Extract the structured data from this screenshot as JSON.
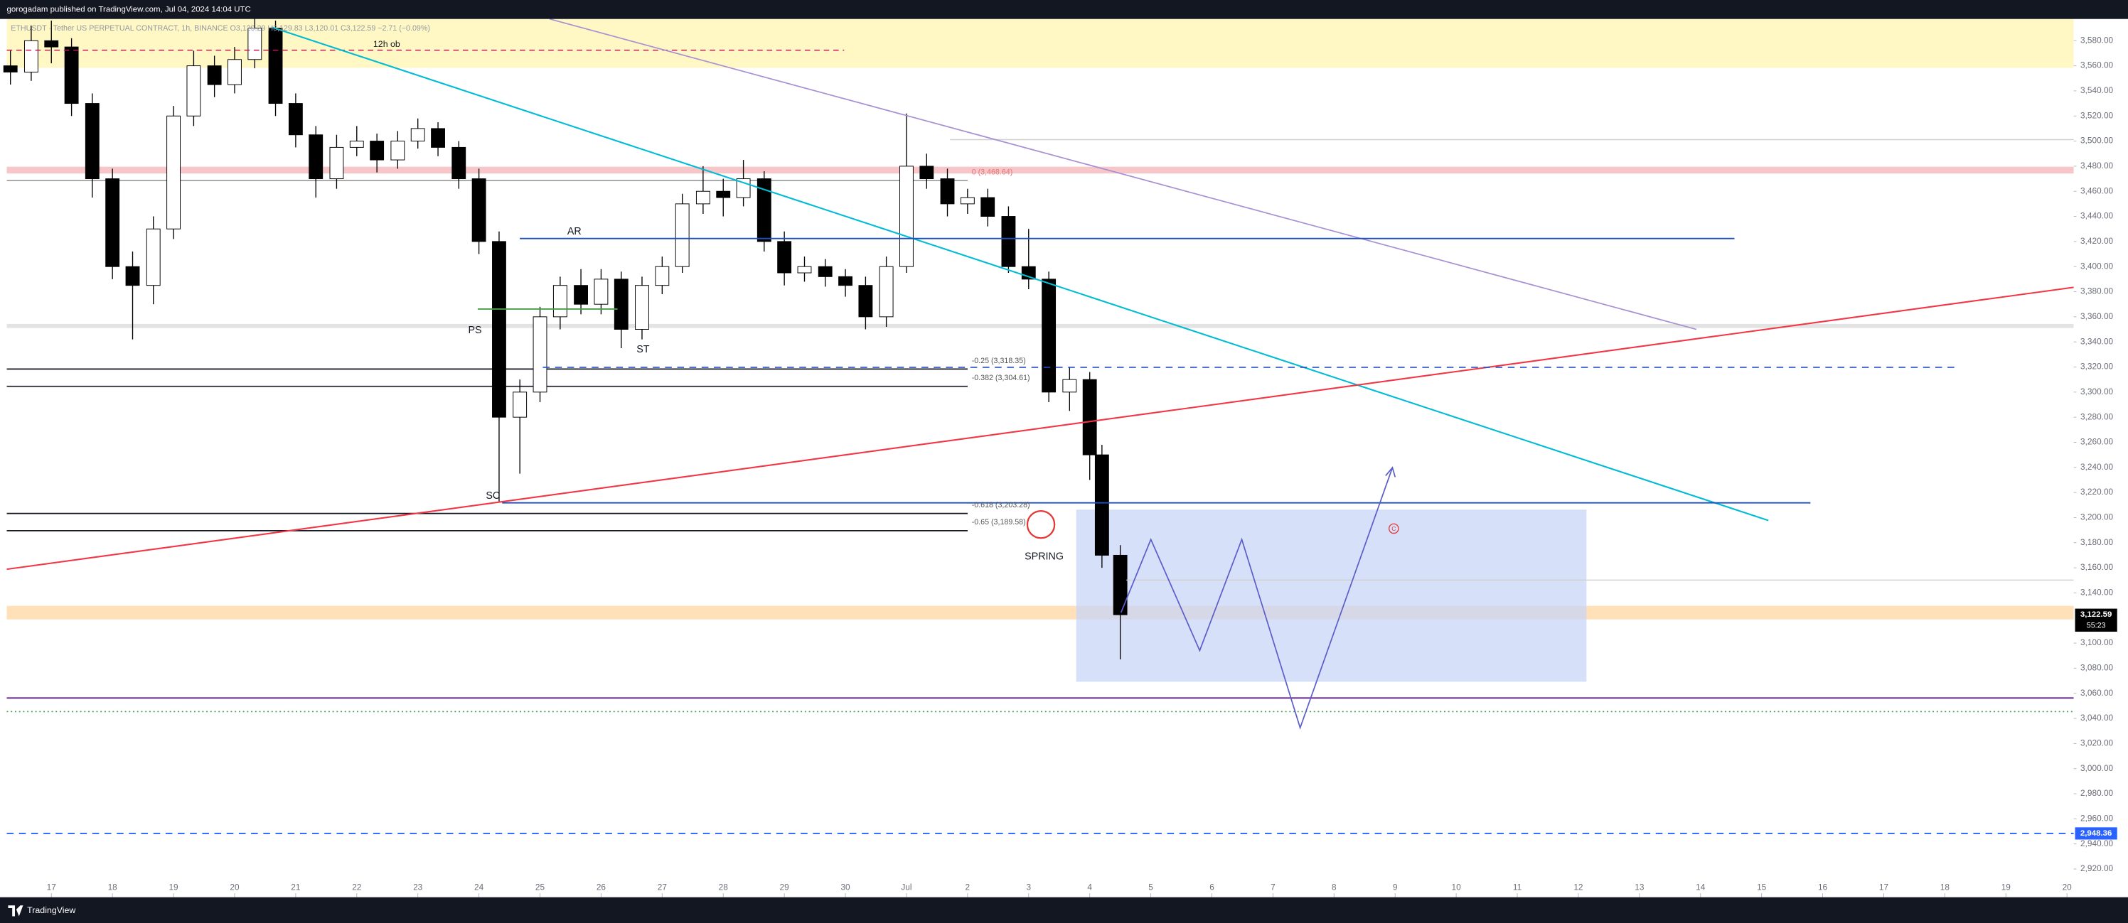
{
  "header": {
    "published": "gorogadam published on TradingView.com, Jul 04, 2024 14:04 UTC",
    "brand": "TradingView"
  },
  "chart_data": {
    "type": "candlestick",
    "legend_text": "ETHUSDT · Tether US PERPETUAL CONTRACT, 1h, BINANCE  O3,129.29 H3,129.83 L3,120.01 C3,122.59 −2.71 (−0.09%)",
    "up_color": "#ffffff",
    "down_color": "#000000",
    "wick_color": "#000000",
    "xlim": [
      -0.73,
      33.11
    ],
    "ylim": [
      2897.5,
      3597.3
    ],
    "xticks": [
      {
        "value": 0,
        "label": "17"
      },
      {
        "value": 1,
        "label": "18"
      },
      {
        "value": 2,
        "label": "19"
      },
      {
        "value": 3,
        "label": "20"
      },
      {
        "value": 4,
        "label": "21"
      },
      {
        "value": 5,
        "label": "22"
      },
      {
        "value": 6,
        "label": "23"
      },
      {
        "value": 7,
        "label": "24"
      },
      {
        "value": 8,
        "label": "25"
      },
      {
        "value": 9,
        "label": "26"
      },
      {
        "value": 10,
        "label": "27"
      },
      {
        "value": 11,
        "label": "28"
      },
      {
        "value": 12,
        "label": "29"
      },
      {
        "value": 13,
        "label": "30"
      },
      {
        "value": 14,
        "label": "Jul"
      },
      {
        "value": 15,
        "label": "2"
      },
      {
        "value": 16,
        "label": "3"
      },
      {
        "value": 17,
        "label": "4"
      },
      {
        "value": 18,
        "label": "5"
      },
      {
        "value": 19,
        "label": "6"
      },
      {
        "value": 20,
        "label": "7"
      },
      {
        "value": 21,
        "label": "8"
      },
      {
        "value": 22,
        "label": "9"
      },
      {
        "value": 23,
        "label": "10"
      },
      {
        "value": 24,
        "label": "11"
      },
      {
        "value": 25,
        "label": "12"
      },
      {
        "value": 26,
        "label": "13"
      },
      {
        "value": 27,
        "label": "14"
      },
      {
        "value": 28,
        "label": "15"
      },
      {
        "value": 29,
        "label": "16"
      },
      {
        "value": 30,
        "label": "17"
      },
      {
        "value": 31,
        "label": "18"
      },
      {
        "value": 32,
        "label": "19"
      },
      {
        "value": 33,
        "label": "20"
      }
    ],
    "yticks": [
      {
        "value": 2920,
        "label": "2,920.00"
      },
      {
        "value": 2940,
        "label": "2,940.00"
      },
      {
        "value": 2960,
        "label": "2,960.00"
      },
      {
        "value": 2980,
        "label": "2,980.00"
      },
      {
        "value": 3000,
        "label": "3,000.00"
      },
      {
        "value": 3020,
        "label": "3,020.00"
      },
      {
        "value": 3040,
        "label": "3,040.00"
      },
      {
        "value": 3060,
        "label": "3,060.00"
      },
      {
        "value": 3080,
        "label": "3,080.00"
      },
      {
        "value": 3100,
        "label": "3,100.00"
      },
      {
        "value": 3140,
        "label": "3,140.00"
      },
      {
        "value": 3160,
        "label": "3,160.00"
      },
      {
        "value": 3180,
        "label": "3,180.00"
      },
      {
        "value": 3200,
        "label": "3,200.00"
      },
      {
        "value": 3220,
        "label": "3,220.00"
      },
      {
        "value": 3240,
        "label": "3,240.00"
      },
      {
        "value": 3260,
        "label": "3,260.00"
      },
      {
        "value": 3280,
        "label": "3,280.00"
      },
      {
        "value": 3300,
        "label": "3,300.00"
      },
      {
        "value": 3320,
        "label": "3,320.00"
      },
      {
        "value": 3340,
        "label": "3,340.00"
      },
      {
        "value": 3360,
        "label": "3,360.00"
      },
      {
        "value": 3380,
        "label": "3,380.00"
      },
      {
        "value": 3400,
        "label": "3,400.00"
      },
      {
        "value": 3420,
        "label": "3,420.00"
      },
      {
        "value": 3440,
        "label": "3,440.00"
      },
      {
        "value": 3460,
        "label": "3,460.00"
      },
      {
        "value": 3480,
        "label": "3,480.00"
      },
      {
        "value": 3500,
        "label": "3,500.00"
      },
      {
        "value": 3520,
        "label": "3,520.00"
      },
      {
        "value": 3540,
        "label": "3,540.00"
      },
      {
        "value": 3560,
        "label": "3,560.00"
      },
      {
        "value": 3580,
        "label": "3,580.00"
      }
    ],
    "x": [
      -0.67,
      -0.33,
      0,
      0.33,
      0.67,
      1,
      1.33,
      1.67,
      2,
      2.33,
      2.67,
      3,
      3.33,
      3.67,
      4,
      4.33,
      4.67,
      5,
      5.33,
      5.67,
      6,
      6.33,
      6.67,
      7,
      7.33,
      7.67,
      8,
      8.33,
      8.67,
      9,
      9.33,
      9.67,
      10,
      10.33,
      10.67,
      11,
      11.33,
      11.67,
      12,
      12.33,
      12.67,
      13,
      13.33,
      13.67,
      14,
      14.33,
      14.67,
      15,
      15.33,
      15.67,
      16,
      16.33,
      16.67,
      17,
      17.2,
      17.5
    ],
    "open": [
      3560,
      3555,
      3580,
      3575,
      3530,
      3470,
      3400,
      3385,
      3430,
      3520,
      3560,
      3545,
      3565,
      3590,
      3530,
      3505,
      3470,
      3495,
      3500,
      3485,
      3500,
      3510,
      3495,
      3470,
      3420,
      3280,
      3300,
      3360,
      3385,
      3370,
      3390,
      3350,
      3385,
      3400,
      3450,
      3460,
      3455,
      3470,
      3420,
      3395,
      3400,
      3392,
      3385,
      3360,
      3400,
      3480,
      3470,
      3450,
      3455,
      3440,
      3400,
      3390,
      3300,
      3310,
      3250,
      3170
    ],
    "high": [
      3572,
      3592,
      3596,
      3582,
      3538,
      3478,
      3412,
      3440,
      3528,
      3572,
      3568,
      3575,
      3600,
      3596,
      3538,
      3512,
      3505,
      3512,
      3506,
      3508,
      3518,
      3515,
      3500,
      3478,
      3428,
      3310,
      3368,
      3392,
      3398,
      3398,
      3396,
      3392,
      3408,
      3458,
      3480,
      3470,
      3485,
      3476,
      3428,
      3408,
      3406,
      3398,
      3392,
      3408,
      3522,
      3490,
      3478,
      3462,
      3462,
      3448,
      3430,
      3396,
      3320,
      3316,
      3258,
      3178
    ],
    "low": [
      3545,
      3548,
      3562,
      3520,
      3455,
      3390,
      3342,
      3370,
      3422,
      3512,
      3535,
      3538,
      3558,
      3520,
      3495,
      3455,
      3462,
      3488,
      3475,
      3478,
      3494,
      3488,
      3462,
      3410,
      3213,
      3235,
      3292,
      3350,
      3362,
      3362,
      3335,
      3342,
      3378,
      3395,
      3442,
      3440,
      3448,
      3412,
      3385,
      3388,
      3384,
      3376,
      3350,
      3352,
      3395,
      3462,
      3440,
      3442,
      3432,
      3395,
      3382,
      3292,
      3285,
      3230,
      3160,
      3087
    ],
    "close": [
      3555,
      3580,
      3575,
      3530,
      3470,
      3400,
      3385,
      3430,
      3520,
      3560,
      3545,
      3565,
      3590,
      3530,
      3505,
      3470,
      3495,
      3500,
      3485,
      3500,
      3510,
      3495,
      3470,
      3420,
      3280,
      3300,
      3360,
      3385,
      3370,
      3390,
      3350,
      3385,
      3400,
      3450,
      3460,
      3455,
      3470,
      3420,
      3395,
      3400,
      3392,
      3385,
      3360,
      3400,
      3480,
      3470,
      3450,
      3455,
      3440,
      3400,
      3390,
      3300,
      3310,
      3250,
      3170,
      3122.59
    ],
    "fib_levels": [
      {
        "value": 3468.64,
        "label": "0 (3,468.64)"
      },
      {
        "value": 3318.35,
        "label": "-0.25 (3,318.35)"
      },
      {
        "value": 3304.61,
        "label": "-0.382 (3,304.61)"
      },
      {
        "value": 3203.28,
        "label": "-0.618 (3,203.28)"
      },
      {
        "value": 3189.58,
        "label": "-0.65 (3,189.58)"
      }
    ],
    "last_price": {
      "value": 3122.59,
      "label": "3,122.59"
    },
    "countdown": "55:23",
    "level": {
      "value": 2948.36,
      "label": "2,948.36"
    },
    "annotations": {
      "ob": "12h ob",
      "ar": "AR",
      "ps": "PS",
      "st": "ST",
      "sc": "SC",
      "spring": "SPRING",
      "c": "C"
    }
  }
}
